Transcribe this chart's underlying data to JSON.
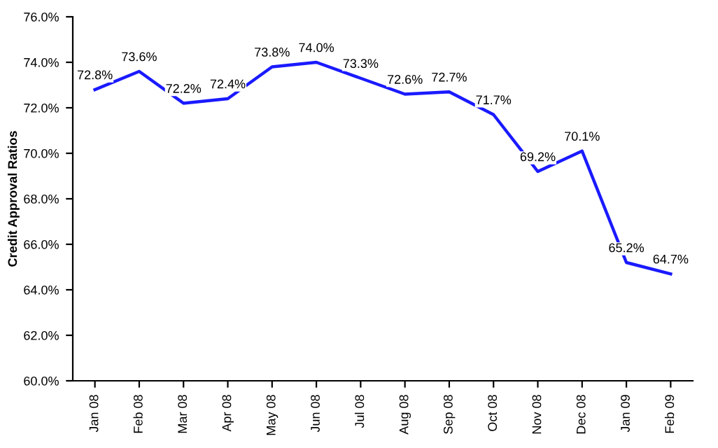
{
  "chart_data": {
    "type": "line",
    "ylabel": "Credit Approval Ratios",
    "categories": [
      "Jan 08",
      "Feb 08",
      "Mar 08",
      "Apr 08",
      "May 08",
      "Jun 08",
      "Jul 08",
      "Aug 08",
      "Sep 08",
      "Oct 08",
      "Nov 08",
      "Dec 08",
      "Jan 09",
      "Feb 09"
    ],
    "series": [
      {
        "color": "#1a1aff",
        "values": [
          72.8,
          73.6,
          72.2,
          72.4,
          73.8,
          74.0,
          73.3,
          72.6,
          72.7,
          71.7,
          69.2,
          70.1,
          65.2,
          64.7
        ],
        "value_labels": [
          "72.8%",
          "73.6%",
          "72.2%",
          "72.4%",
          "73.8%",
          "74.0%",
          "73.3%",
          "72.6%",
          "72.7%",
          "71.7%",
          "69.2%",
          "70.1%",
          "65.2%",
          "64.7%"
        ]
      }
    ],
    "ylim": [
      60,
      76
    ],
    "yticks": [
      {
        "value": 60,
        "label": "60.0%"
      },
      {
        "value": 62,
        "label": "62.0%"
      },
      {
        "value": 64,
        "label": "64.0%"
      },
      {
        "value": 66,
        "label": "66.0%"
      },
      {
        "value": 68,
        "label": "68.0%"
      },
      {
        "value": 70,
        "label": "70.0%"
      },
      {
        "value": 72,
        "label": "72.0%"
      },
      {
        "value": 74,
        "label": "74.0%"
      },
      {
        "value": 76,
        "label": "76.0%"
      }
    ],
    "grid": false,
    "legend": false,
    "marker": "none",
    "line_style": "solid"
  }
}
